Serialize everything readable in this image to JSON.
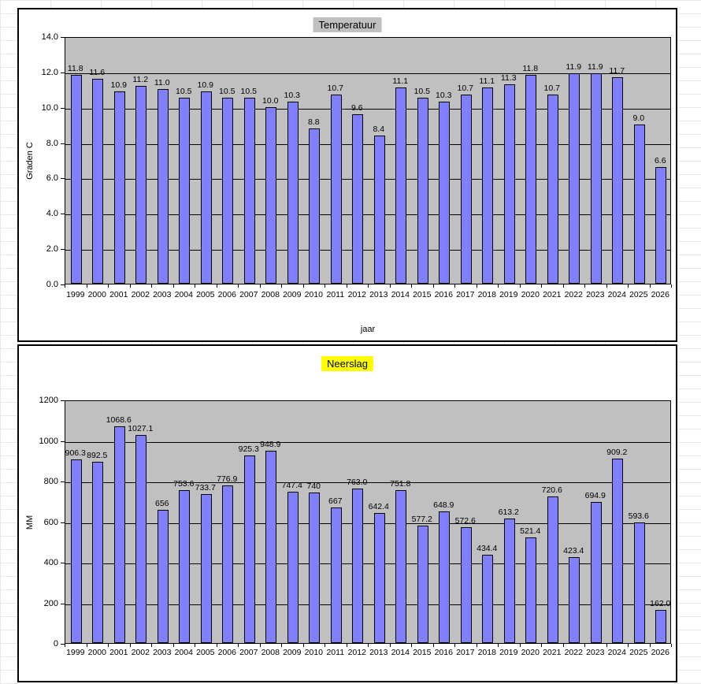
{
  "chart_data": [
    {
      "type": "bar",
      "title": "Temperatuur",
      "title_highlight": "#C0C0C0",
      "xlabel": "jaar",
      "ylabel": "Graden C",
      "ylim": [
        0,
        14
      ],
      "ytick_labels": [
        "14.0",
        "12.0",
        "10.0",
        "8.0",
        "6.0",
        "4.0",
        "2.0",
        "0.0"
      ],
      "grid": true,
      "legend": "none",
      "plot_bg": "#C0C0C0",
      "bar_fill": "#8080FF",
      "bar_border": "#000000",
      "categories": [
        "1999",
        "2000",
        "2001",
        "2002",
        "2003",
        "2004",
        "2005",
        "2006",
        "2007",
        "2008",
        "2009",
        "2010",
        "2011",
        "2012",
        "2013",
        "2014",
        "2015",
        "2016",
        "2017",
        "2018",
        "2019",
        "2020",
        "2021",
        "2022",
        "2023",
        "2024",
        "2025",
        "2026"
      ],
      "values": [
        11.8,
        11.6,
        10.9,
        11.2,
        11.0,
        10.5,
        10.9,
        10.5,
        10.5,
        10.0,
        10.3,
        8.8,
        10.7,
        9.6,
        8.4,
        11.1,
        10.5,
        10.3,
        10.7,
        11.1,
        11.3,
        11.8,
        10.7,
        11.9,
        11.9,
        11.7,
        9.0,
        6.6
      ],
      "value_labels": [
        "11.8",
        "11.6",
        "10.9",
        "11.2",
        "11.0",
        "10.5",
        "10.9",
        "10.5",
        "10.5",
        "10.0",
        "10.3",
        "8.8",
        "10.7",
        "9.6",
        "8.4",
        "11.1",
        "10.5",
        "10.3",
        "10.7",
        "11.1",
        "11.3",
        "11.8",
        "10.7",
        "11.9",
        "11.9",
        "11.7",
        "9.0",
        "6.6"
      ]
    },
    {
      "type": "bar",
      "title": "Neerslag",
      "title_highlight": "#FFFF00",
      "xlabel": "",
      "ylabel": "MM",
      "ylim": [
        0,
        1200
      ],
      "ytick_labels": [
        "1200",
        "1000",
        "800",
        "600",
        "400",
        "200",
        "0"
      ],
      "grid": true,
      "legend": "none",
      "plot_bg": "#C0C0C0",
      "bar_fill": "#8080FF",
      "bar_border": "#000000",
      "categories": [
        "1999",
        "2000",
        "2001",
        "2002",
        "2003",
        "2004",
        "2005",
        "2006",
        "2007",
        "2008",
        "2009",
        "2010",
        "2011",
        "2012",
        "2013",
        "2014",
        "2015",
        "2016",
        "2017",
        "2018",
        "2019",
        "2020",
        "2021",
        "2022",
        "2023",
        "2024",
        "2025",
        "2026"
      ],
      "values": [
        906.3,
        892.5,
        1068.6,
        1027.1,
        656,
        753.6,
        733.7,
        776.9,
        925.3,
        948.9,
        747.4,
        740,
        667,
        763.0,
        642.4,
        751.8,
        577.2,
        648.9,
        572.6,
        434.4,
        613.2,
        521.4,
        720.6,
        423.4,
        694.9,
        909.2,
        593.6,
        162.0
      ],
      "value_labels": [
        "906.3",
        "892.5",
        "1068.6",
        "1027.1",
        "656",
        "753.6",
        "733.7",
        "776.9",
        "925.3",
        "948.9",
        "747.4",
        "740",
        "667",
        "763.0",
        "642.4",
        "751.8",
        "577.2",
        "648.9",
        "572.6",
        "434.4",
        "613.2",
        "521.4",
        "720.6",
        "423.4",
        "694.9",
        "909.2",
        "593.6",
        "162.0"
      ]
    }
  ]
}
